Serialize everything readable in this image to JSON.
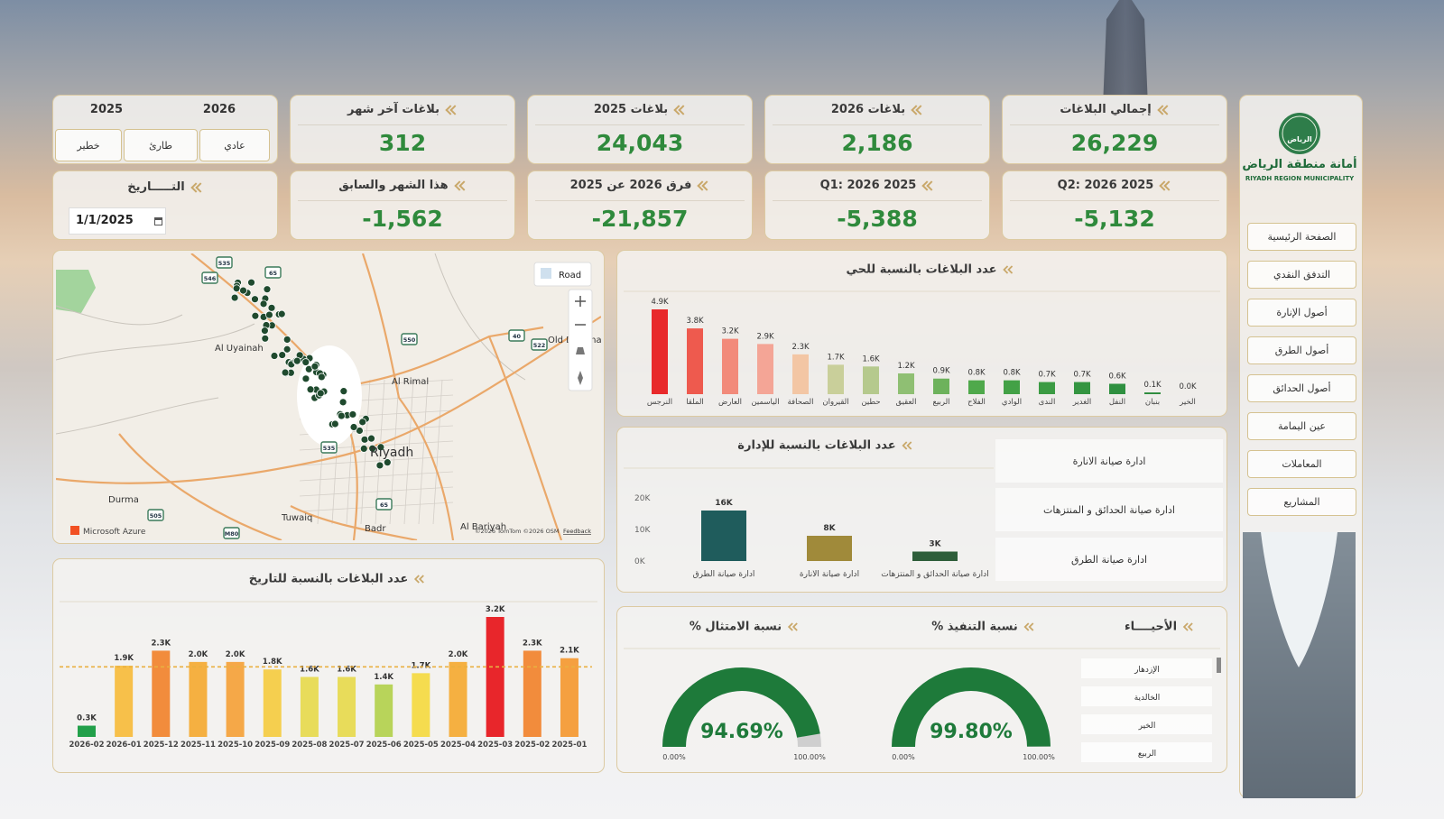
{
  "sidebar": {
    "logo_emblem": "الرياض",
    "logo_name": "أمانة منطقة الرياض",
    "logo_subtitle": "RIYADH REGION MUNICIPALITY",
    "nav": [
      "الصفحة الرئيسية",
      "التدفق النقدي",
      "أصول الإنارة",
      "أصول الطرق",
      "أصول الحدائق",
      "عين اليمامة",
      "المعاملات",
      "المشاريع"
    ]
  },
  "filters": {
    "years": [
      "2025",
      "2026"
    ],
    "priority": [
      "خطير",
      "طارئ",
      "عادي"
    ],
    "date_label": "التـــــاريخ",
    "date_value": "1/1/2025"
  },
  "kpis": [
    {
      "label": "إجمالي البلاغات",
      "value": "26,229"
    },
    {
      "label": "بلاغات 2026",
      "value": "2,186"
    },
    {
      "label": "بلاغات 2025",
      "value": "24,043"
    },
    {
      "label": "بلاغات آخر شهر",
      "value": "312"
    },
    {
      "label": "Q2: 2026 2025",
      "value": "-5,132"
    },
    {
      "label": "Q1: 2026 2025",
      "value": "-5,388"
    },
    {
      "label": "فرق 2026 عن 2025",
      "value": "-21,857"
    },
    {
      "label": "هذا الشهر والسابق",
      "value": "-1,562"
    }
  ],
  "map": {
    "button": "Road",
    "places": [
      "Al Uyainah",
      "Al Rimal",
      "Riyadh",
      "Durma",
      "Tuwaiq",
      "Badr",
      "Al Bariyah",
      "Old Dammam R"
    ],
    "shields": [
      "535",
      "546",
      "65",
      "550",
      "40",
      "522",
      "505",
      "M80",
      "535",
      "65"
    ],
    "provider": "Microsoft Azure",
    "attribution": "©2026 TomTom ©2026 OSM",
    "feedback": "Feedback"
  },
  "chart_data": [
    {
      "type": "bar",
      "title": "عدد البلاغات بالنسبة للحي",
      "categories": [
        "النرجس",
        "الملقا",
        "العارض",
        "الياسمين",
        "الصحافة",
        "القيروان",
        "حطين",
        "العقيق",
        "الربيع",
        "الفلاح",
        "الوادي",
        "الندى",
        "الغدير",
        "النفل",
        "بنبان",
        "الخير"
      ],
      "values": [
        4900,
        3800,
        3200,
        2900,
        2300,
        1700,
        1600,
        1200,
        900,
        800,
        800,
        700,
        700,
        600,
        100,
        0
      ],
      "value_labels": [
        "4.9K",
        "3.8K",
        "3.2K",
        "2.9K",
        "2.3K",
        "1.7K",
        "1.6K",
        "1.2K",
        "0.9K",
        "0.8K",
        "0.8K",
        "0.7K",
        "0.7K",
        "0.6K",
        "0.1K",
        "0.0K"
      ],
      "colors": [
        "#e8292b",
        "#ee5a4e",
        "#f28a7a",
        "#f4a596",
        "#f3c6a4",
        "#c9cf9a",
        "#b5c98d",
        "#8fbf73",
        "#6db25c",
        "#4fa94b",
        "#43a146",
        "#3b9b43",
        "#349541",
        "#2f9040",
        "#2b8a3c",
        "#28873b"
      ]
    },
    {
      "type": "bar",
      "title": "عدد البلاغات بالنسبة للإدارة",
      "categories": [
        "ادارة صيانة الطرق",
        "ادارة صيانة الانارة",
        "ادارة صيانة الحدائق و المنتزهات"
      ],
      "values": [
        16000,
        8000,
        3000
      ],
      "value_labels": [
        "16K",
        "8K",
        "3K"
      ],
      "colors": [
        "#1f5c5c",
        "#a08a3a",
        "#2e5e3a"
      ],
      "ylim": [
        0,
        20000
      ],
      "yticks": [
        {
          "value": 0,
          "label": "0K"
        },
        {
          "value": 10000,
          "label": "10K"
        },
        {
          "value": 20000,
          "label": "20K"
        }
      ]
    },
    {
      "type": "bar",
      "title": "عدد البلاغات بالنسبة للتاريخ",
      "categories": [
        "2026-02",
        "2026-01",
        "2025-12",
        "2025-11",
        "2025-10",
        "2025-09",
        "2025-08",
        "2025-07",
        "2025-06",
        "2025-05",
        "2025-04",
        "2025-03",
        "2025-02",
        "2025-01"
      ],
      "values": [
        300,
        1900,
        2300,
        2000,
        2000,
        1800,
        1600,
        1600,
        1400,
        1700,
        2000,
        3200,
        2300,
        2100
      ],
      "value_labels": [
        "0.3K",
        "1.9K",
        "2.3K",
        "2.0K",
        "2.0K",
        "1.8K",
        "1.6K",
        "1.6K",
        "1.4K",
        "1.7K",
        "2.0K",
        "3.2K",
        "2.3K",
        "2.1K"
      ],
      "colors": [
        "#22a04a",
        "#f7c04a",
        "#f28c3c",
        "#f5b041",
        "#f5a848",
        "#f5cf4f",
        "#e8dc5a",
        "#e8dc5a",
        "#b8d45a",
        "#f5dc4f",
        "#f5b041",
        "#e8262b",
        "#f28c3c",
        "#f5a040"
      ],
      "reference_line": 1870
    },
    {
      "type": "gauge",
      "title": "% نسبة الامتثال",
      "value": 94.69,
      "value_label": "94.69%",
      "ylim": [
        0,
        100
      ],
      "yticks": [
        {
          "value": 0,
          "label": "0.00%"
        },
        {
          "value": 100,
          "label": "100.00%"
        }
      ],
      "color": "#1e7a3a"
    },
    {
      "type": "gauge",
      "title": "% نسبة التنفيذ",
      "value": 99.8,
      "value_label": "99.80%",
      "ylim": [
        0,
        100
      ],
      "yticks": [
        {
          "value": 0,
          "label": "0.00%"
        },
        {
          "value": 100,
          "label": "100.00%"
        }
      ],
      "color": "#1e7a3a"
    }
  ],
  "department_slicer": [
    "ادارة صيانة الانارة",
    "ادارة صيانة الحدائق و المنتزهات",
    "ادارة صيانة الطرق"
  ],
  "district_slicer": {
    "title": "الأحيــــاء",
    "items": [
      "الإزدهار",
      "الخالدية",
      "الخير",
      "الربيع"
    ]
  }
}
